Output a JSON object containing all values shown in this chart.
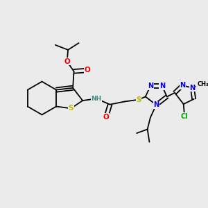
{
  "background_color": "#ebebeb",
  "fig_width": 3.0,
  "fig_height": 3.0,
  "dpi": 100,
  "C": "#000000",
  "N": "#0000ee",
  "O": "#ee0000",
  "S": "#bbbb00",
  "Cl": "#00aa00",
  "H": "#448888",
  "bond_lw": 1.3
}
